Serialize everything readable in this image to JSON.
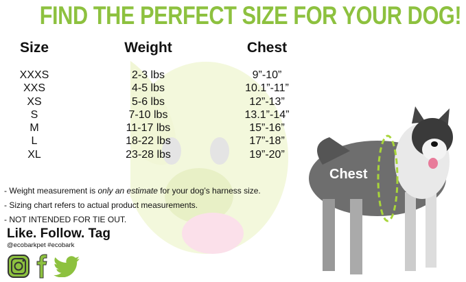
{
  "title": "FIND THE PERFECT SIZE FOR YOUR DOG!",
  "table": {
    "headers": [
      "Size",
      "Weight",
      "Chest"
    ],
    "sizes": [
      "XXXS",
      "XXS",
      "XS",
      "S",
      "M",
      "L",
      "XL"
    ],
    "weights": [
      "2-3 lbs",
      "4-5 lbs",
      "5-6 lbs",
      "7-10 lbs",
      "11-17 lbs",
      "18-22 lbs",
      "23-28 lbs"
    ],
    "chests": [
      "9”-10”",
      "10.1”-11”",
      "12”-13”",
      "13.1”-14”",
      "15”-16”",
      "17”-18”",
      "19”-20”"
    ]
  },
  "notes": {
    "n1_pre": "- Weight measurement is ",
    "n1_em": "only an estimate",
    "n1_post": " for your dog’s harness size.",
    "n2": "- Sizing chart refers to actual product measurements.",
    "n3": "- NOT INTENDED FOR TIE OUT."
  },
  "social": {
    "heading": "Like. Follow. Tag",
    "handles": "@ecobarkpet  #ecobark",
    "icons": [
      "instagram-icon",
      "facebook-icon",
      "twitter-icon"
    ],
    "color": "#8dc13f"
  },
  "dog": {
    "chest_label": "Chest"
  },
  "colors": {
    "accent": "#8dc13f"
  }
}
